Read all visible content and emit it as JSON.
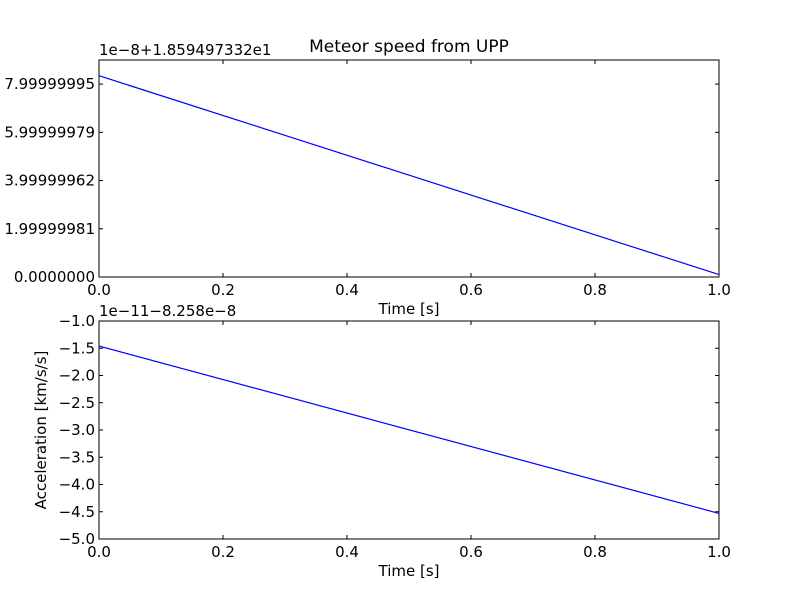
{
  "chart_data": [
    {
      "type": "line",
      "title": "Meteor speed from  UPP",
      "offset_label": "1e−8+1.859497332e1",
      "xlabel": "Time [s]",
      "ylabel": "",
      "xlim": [
        0.0,
        1.0
      ],
      "ylim": [
        0.0,
        9.0
      ],
      "x_ticks": [
        0.0,
        0.2,
        0.4,
        0.6,
        0.8,
        1.0
      ],
      "x_tick_labels": [
        "0.0",
        "0.2",
        "0.4",
        "0.6",
        "0.8",
        "1.0"
      ],
      "y_ticks": [
        0.0,
        1.99999981,
        3.99999962,
        5.99999979,
        7.99999995
      ],
      "y_tick_labels": [
        "0.0000000",
        "1.99999981",
        "3.99999962",
        "5.99999979",
        "7.99999995"
      ],
      "series": [
        {
          "color": "#0000ff",
          "x": [
            0.0,
            1.0
          ],
          "y": [
            8.35,
            0.1
          ]
        }
      ]
    },
    {
      "type": "line",
      "title": "",
      "offset_label": "1e−11−8.258e−8",
      "xlabel": "Time [s]",
      "ylabel": "Acceleration [km/s/s]",
      "xlim": [
        0.0,
        1.0
      ],
      "ylim": [
        -5.0,
        -1.0
      ],
      "x_ticks": [
        0.0,
        0.2,
        0.4,
        0.6,
        0.8,
        1.0
      ],
      "x_tick_labels": [
        "0.0",
        "0.2",
        "0.4",
        "0.6",
        "0.8",
        "1.0"
      ],
      "y_ticks": [
        -1.0,
        -1.5,
        -2.0,
        -2.5,
        -3.0,
        -3.5,
        -4.0,
        -4.5,
        -5.0
      ],
      "y_tick_labels": [
        "−1.0",
        "−1.5",
        "−2.0",
        "−2.5",
        "−3.0",
        "−3.5",
        "−4.0",
        "−4.5",
        "−5.0"
      ],
      "series": [
        {
          "color": "#0000ff",
          "x": [
            0.0,
            1.0
          ],
          "y": [
            -1.46,
            -4.53
          ]
        }
      ]
    }
  ]
}
